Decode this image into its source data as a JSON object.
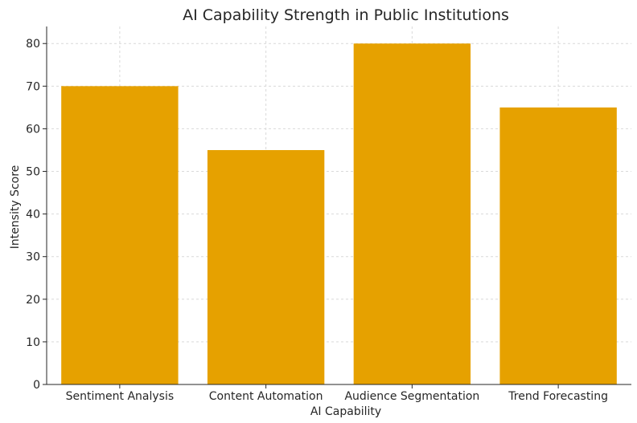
{
  "chart_data": {
    "type": "bar",
    "title": "AI Capability Strength in Public Institutions",
    "xlabel": "AI Capability",
    "ylabel": "Intensity Score",
    "categories": [
      "Sentiment Analysis",
      "Content Automation",
      "Audience Segmentation",
      "Trend Forecasting"
    ],
    "values": [
      70,
      55,
      80,
      65
    ],
    "ylim": [
      0,
      84
    ],
    "yticks": [
      0,
      10,
      20,
      30,
      40,
      50,
      60,
      70,
      80
    ],
    "bar_color": "#e6a100",
    "grid": true
  }
}
